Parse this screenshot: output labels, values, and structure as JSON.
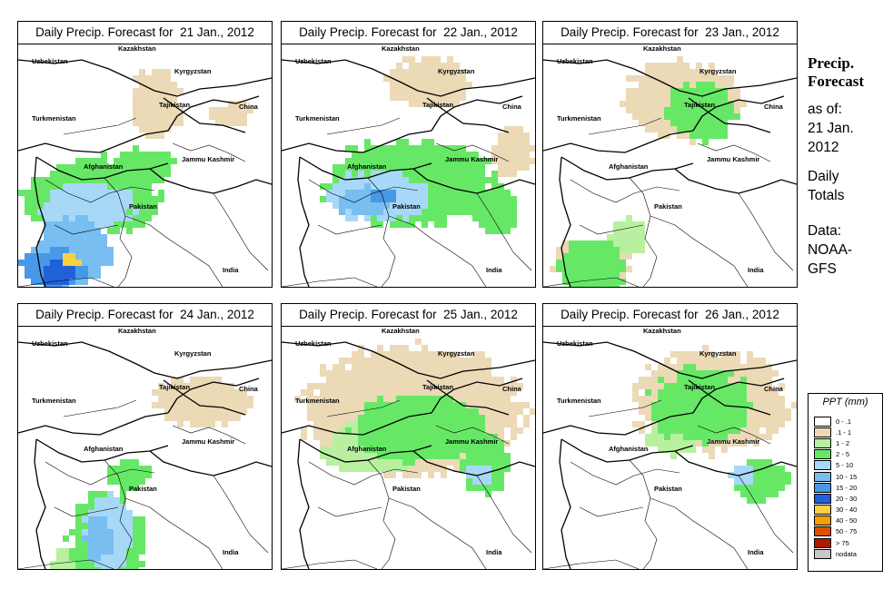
{
  "panels": [
    {
      "title": "Daily Precip. Forecast for  21 Jan., 2012",
      "day": 21
    },
    {
      "title": "Daily Precip. Forecast for  22 Jan., 2012",
      "day": 22
    },
    {
      "title": "Daily Precip. Forecast for  23 Jan., 2012",
      "day": 23
    },
    {
      "title": "Daily Precip. Forecast for  24 Jan., 2012",
      "day": 24
    },
    {
      "title": "Daily Precip. Forecast for  25 Jan., 2012",
      "day": 25
    },
    {
      "title": "Daily Precip. Forecast for  26 Jan., 2012",
      "day": 26
    }
  ],
  "map_labels": {
    "kazakhstan": "Kazakhstan",
    "uzbekistan": "Uzbekistan",
    "kyrgyzstan": "Kyrgyzstan",
    "tajikistan": "Tajikistan",
    "turkmenistan": "Turkmenistan",
    "china": "China",
    "afghanistan": "Afghanistan",
    "jammu_kashmir": "Jammu Kashmir",
    "pakistan": "Pakistan",
    "india": "India"
  },
  "side": {
    "title_line1": "Precip.",
    "title_line2": "Forecast",
    "asof": "as of:",
    "date_line1": "21 Jan.",
    "date_line2": "2012",
    "totals_line1": "Daily",
    "totals_line2": "Totals",
    "data_line1": "Data:",
    "data_line2": "NOAA-",
    "data_line3": "GFS"
  },
  "legend": {
    "title": "PPT (mm)",
    "items": [
      {
        "label": "0 - .1",
        "color": "#ffffff"
      },
      {
        "label": ".1 - 1",
        "color": "#ecd9b6"
      },
      {
        "label": "1 - 2",
        "color": "#b8f0a0"
      },
      {
        "label": "2 - 5",
        "color": "#66e866"
      },
      {
        "label": "5 - 10",
        "color": "#a8d8f8"
      },
      {
        "label": "10 - 15",
        "color": "#78bef0"
      },
      {
        "label": "15 - 20",
        "color": "#4898e8"
      },
      {
        "label": "20 - 30",
        "color": "#2060d8"
      },
      {
        "label": "30 - 40",
        "color": "#f8d040"
      },
      {
        "label": "40 - 50",
        "color": "#f8a000"
      },
      {
        "label": "50 - 75",
        "color": "#e05000"
      },
      {
        "label": "> 75",
        "color": "#b01800"
      },
      {
        "label": "nodata",
        "color": "#c8c8c8"
      }
    ]
  },
  "precip_regions": {
    "21": [
      {
        "cls": 1,
        "cx": 150,
        "cy": 60,
        "rx": 30,
        "ry": 40
      },
      {
        "cls": 1,
        "cx": 230,
        "cy": 75,
        "rx": 25,
        "ry": 15
      },
      {
        "cls": 3,
        "cx": 80,
        "cy": 165,
        "rx": 80,
        "ry": 45
      },
      {
        "cls": 3,
        "cx": 135,
        "cy": 130,
        "rx": 35,
        "ry": 20
      },
      {
        "cls": 5,
        "cx": 55,
        "cy": 225,
        "rx": 45,
        "ry": 40
      },
      {
        "cls": 4,
        "cx": 75,
        "cy": 175,
        "rx": 55,
        "ry": 25
      },
      {
        "cls": 6,
        "cx": 35,
        "cy": 245,
        "rx": 35,
        "ry": 25
      },
      {
        "cls": 7,
        "cx": 40,
        "cy": 250,
        "rx": 18,
        "ry": 15
      },
      {
        "cls": 8,
        "cx": 55,
        "cy": 235,
        "rx": 10,
        "ry": 8
      }
    ],
    "22": [
      {
        "cls": 1,
        "cx": 160,
        "cy": 40,
        "rx": 50,
        "ry": 30
      },
      {
        "cls": 1,
        "cx": 250,
        "cy": 115,
        "rx": 25,
        "ry": 30
      },
      {
        "cls": 3,
        "cx": 140,
        "cy": 150,
        "rx": 100,
        "ry": 50
      },
      {
        "cls": 3,
        "cx": 230,
        "cy": 180,
        "rx": 30,
        "ry": 30
      },
      {
        "cls": 4,
        "cx": 105,
        "cy": 165,
        "rx": 60,
        "ry": 30
      },
      {
        "cls": 5,
        "cx": 90,
        "cy": 170,
        "rx": 35,
        "ry": 18
      },
      {
        "cls": 6,
        "cx": 110,
        "cy": 165,
        "rx": 15,
        "ry": 8
      }
    ],
    "23": [
      {
        "cls": 1,
        "cx": 150,
        "cy": 60,
        "rx": 70,
        "ry": 45
      },
      {
        "cls": 1,
        "cx": 50,
        "cy": 240,
        "rx": 45,
        "ry": 30
      },
      {
        "cls": 3,
        "cx": 170,
        "cy": 70,
        "rx": 40,
        "ry": 35
      },
      {
        "cls": 3,
        "cx": 50,
        "cy": 245,
        "rx": 40,
        "ry": 35
      },
      {
        "cls": 2,
        "cx": 90,
        "cy": 210,
        "rx": 20,
        "ry": 25
      }
    ],
    "24": [
      {
        "cls": 1,
        "cx": 200,
        "cy": 80,
        "rx": 60,
        "ry": 30
      },
      {
        "cls": 3,
        "cx": 95,
        "cy": 235,
        "rx": 45,
        "ry": 60
      },
      {
        "cls": 3,
        "cx": 120,
        "cy": 160,
        "rx": 25,
        "ry": 20
      },
      {
        "cls": 4,
        "cx": 95,
        "cy": 225,
        "rx": 28,
        "ry": 45
      },
      {
        "cls": 5,
        "cx": 85,
        "cy": 230,
        "rx": 15,
        "ry": 30
      },
      {
        "cls": 2,
        "cx": 70,
        "cy": 260,
        "rx": 40,
        "ry": 25
      }
    ],
    "25": [
      {
        "cls": 1,
        "cx": 140,
        "cy": 90,
        "rx": 130,
        "ry": 75
      },
      {
        "cls": 3,
        "cx": 150,
        "cy": 110,
        "rx": 80,
        "ry": 40
      },
      {
        "cls": 3,
        "cx": 220,
        "cy": 150,
        "rx": 30,
        "ry": 35
      },
      {
        "cls": 2,
        "cx": 100,
        "cy": 130,
        "rx": 60,
        "ry": 30
      },
      {
        "cls": 4,
        "cx": 215,
        "cy": 160,
        "rx": 15,
        "ry": 12
      }
    ],
    "26": [
      {
        "cls": 1,
        "cx": 180,
        "cy": 80,
        "rx": 90,
        "ry": 60
      },
      {
        "cls": 3,
        "cx": 170,
        "cy": 85,
        "rx": 60,
        "ry": 45
      },
      {
        "cls": 3,
        "cx": 235,
        "cy": 165,
        "rx": 35,
        "ry": 25
      },
      {
        "cls": 4,
        "cx": 215,
        "cy": 160,
        "rx": 15,
        "ry": 10
      },
      {
        "cls": 2,
        "cx": 140,
        "cy": 120,
        "rx": 30,
        "ry": 20
      }
    ]
  }
}
